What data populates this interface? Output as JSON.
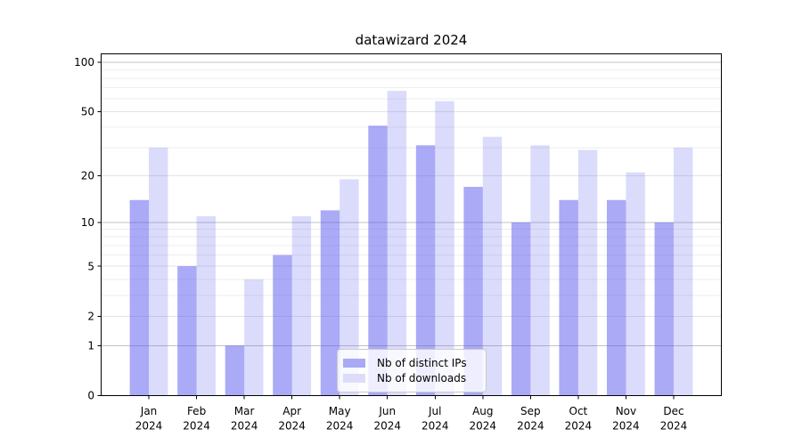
{
  "title": "datawizard 2024",
  "legend": {
    "items": [
      {
        "label": "Nb of distinct IPs",
        "swatch": "#a9a9f5"
      },
      {
        "label": "Nb of downloads",
        "swatch": "#dcdcfa"
      }
    ]
  },
  "chart_data": {
    "type": "bar",
    "title": "datawizard 2024",
    "categories": [
      "Jan",
      "Feb",
      "Mar",
      "Apr",
      "May",
      "Jun",
      "Jul",
      "Aug",
      "Sep",
      "Oct",
      "Nov",
      "Dec"
    ],
    "category_year": "2024",
    "series": [
      {
        "name": "Nb of distinct IPs",
        "color": "rgba(85,85,240,0.50)",
        "values": [
          14,
          5,
          1,
          6,
          12,
          41,
          31,
          17,
          10,
          14,
          14,
          10
        ]
      },
      {
        "name": "Nb of downloads",
        "color": "rgba(85,85,240,0.21)",
        "values": [
          30,
          11,
          4,
          11,
          19,
          67,
          58,
          35,
          31,
          29,
          21,
          30
        ]
      }
    ],
    "xlabel": "",
    "ylabel": "",
    "yscale": "log1p",
    "ylim": [
      0,
      114
    ],
    "y_ticks": [
      0,
      1,
      2,
      5,
      10,
      20,
      50,
      100
    ],
    "y_major_gridlines": [
      1,
      10,
      100
    ],
    "y_minor_gridlines": [
      3,
      4,
      6,
      7,
      8,
      9,
      30,
      40,
      60,
      70,
      80,
      90
    ],
    "grid": true,
    "legend_position": "lower center",
    "colors": {
      "grid_major": "#c2c2c2",
      "grid_mid": "#e3e3e3",
      "grid_minor": "#eeeeee",
      "axis": "#000000"
    }
  }
}
